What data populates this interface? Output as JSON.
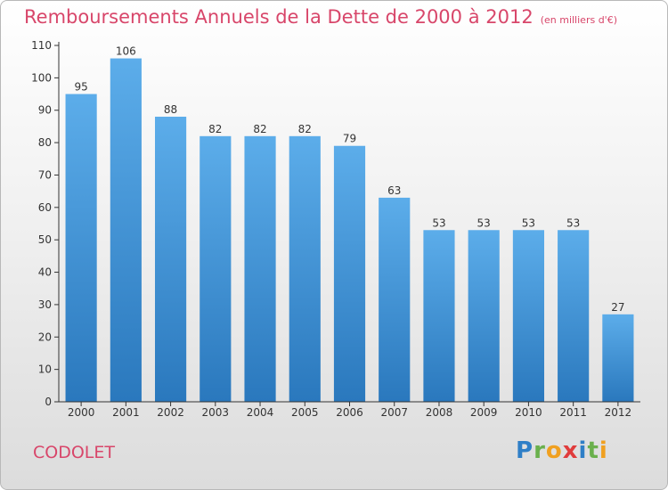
{
  "title": "Remboursements Annuels de la Dette de 2000 à 2012",
  "unit_label": "(en milliers d'€)",
  "commune": "CODOLET",
  "logo": {
    "letters": [
      "P",
      "r",
      "o",
      "x",
      "i",
      "t",
      "i"
    ],
    "colors": [
      "#2f7fc7",
      "#6ab04c",
      "#f0a020",
      "#e03c3c",
      "#2f7fc7",
      "#6ab04c",
      "#f0a020"
    ]
  },
  "colors": {
    "title": "#d8466a",
    "bar_top": "#5cadea",
    "bar_bottom": "#2a78bd",
    "axis": "#333333",
    "grid": "#c8c8c8"
  },
  "chart_data": {
    "type": "bar",
    "title": "Remboursements Annuels de la Dette de 2000 à 2012",
    "categories": [
      "2000",
      "2001",
      "2002",
      "2003",
      "2004",
      "2005",
      "2006",
      "2007",
      "2008",
      "2009",
      "2010",
      "2011",
      "2012"
    ],
    "values": [
      95,
      106,
      88,
      82,
      82,
      82,
      79,
      63,
      53,
      53,
      53,
      53,
      27
    ],
    "ylim": [
      0,
      110
    ],
    "yticks": [
      0,
      10,
      20,
      30,
      40,
      50,
      60,
      70,
      80,
      90,
      100,
      110
    ],
    "grid": false,
    "data_labels": true
  }
}
